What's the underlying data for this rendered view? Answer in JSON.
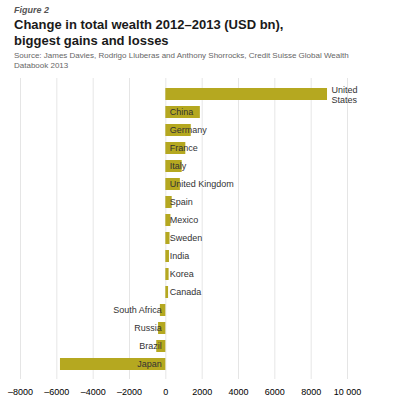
{
  "chart_data": {
    "type": "bar",
    "orientation": "horizontal",
    "figure_label": "Figure 2",
    "title": "Change in total wealth 2012–2013 (USD bn),\nbiggest gains and losses",
    "source": "Source: James Davies, Rodrigo Lluberas and Anthony Shorrocks, Credit Suisse Global Wealth Databook 2013",
    "categories": [
      "United\nStates",
      "China",
      "Germany",
      "France",
      "Italy",
      "United Kingdom",
      "Spain",
      "Mexico",
      "Sweden",
      "India",
      "Korea",
      "Canada",
      "South Africa",
      "Russia",
      "Brazil",
      "Japan"
    ],
    "values": [
      8900,
      1900,
      1400,
      1100,
      900,
      800,
      350,
      280,
      230,
      200,
      180,
      150,
      -300,
      -400,
      -500,
      -5800
    ],
    "color": "#b5a820",
    "xlim": [
      -8000,
      10000
    ],
    "xticks": [
      {
        "value": -8000,
        "label": "–8000"
      },
      {
        "value": -6000,
        "label": "–6000"
      },
      {
        "value": -4000,
        "label": "–4000"
      },
      {
        "value": -2000,
        "label": "–2000"
      },
      0,
      2000,
      4000,
      6000,
      8000,
      {
        "value": 10000,
        "label": "10 000"
      }
    ],
    "grid": true,
    "tick_labels": "x"
  }
}
